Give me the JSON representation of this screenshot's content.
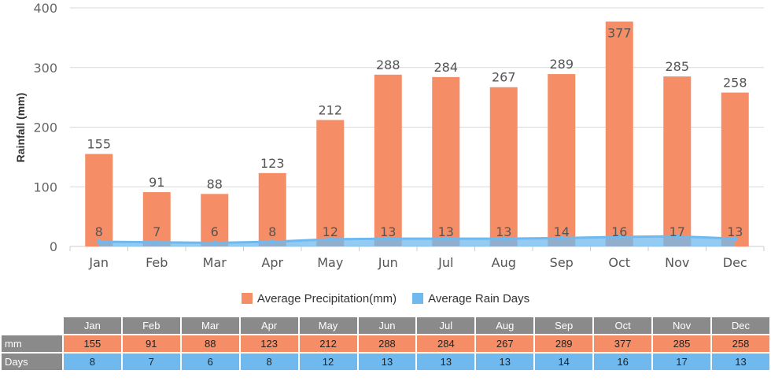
{
  "chart_data": {
    "type": "bar",
    "categories": [
      "Jan",
      "Feb",
      "Mar",
      "Apr",
      "May",
      "Jun",
      "Jul",
      "Aug",
      "Sep",
      "Oct",
      "Nov",
      "Dec"
    ],
    "series": [
      {
        "name": "Average Precipitation(mm)",
        "type": "bar",
        "color": "#f58e66",
        "values": [
          155,
          91,
          88,
          123,
          212,
          288,
          284,
          267,
          289,
          377,
          285,
          258
        ]
      },
      {
        "name": "Average Rain Days",
        "type": "area",
        "color": "#6fb9ef",
        "values": [
          8,
          7,
          6,
          8,
          12,
          13,
          13,
          13,
          14,
          16,
          17,
          13
        ]
      }
    ],
    "ylabel": "Rainfall (mm)",
    "xlabel": "",
    "ylim": [
      0,
      400
    ],
    "yticks": [
      0,
      100,
      200,
      300,
      400
    ],
    "grid": true,
    "legend": "bottom"
  },
  "table": {
    "rows": [
      {
        "label": "mm",
        "key": "mm"
      },
      {
        "label": "Days",
        "key": "days"
      }
    ]
  }
}
